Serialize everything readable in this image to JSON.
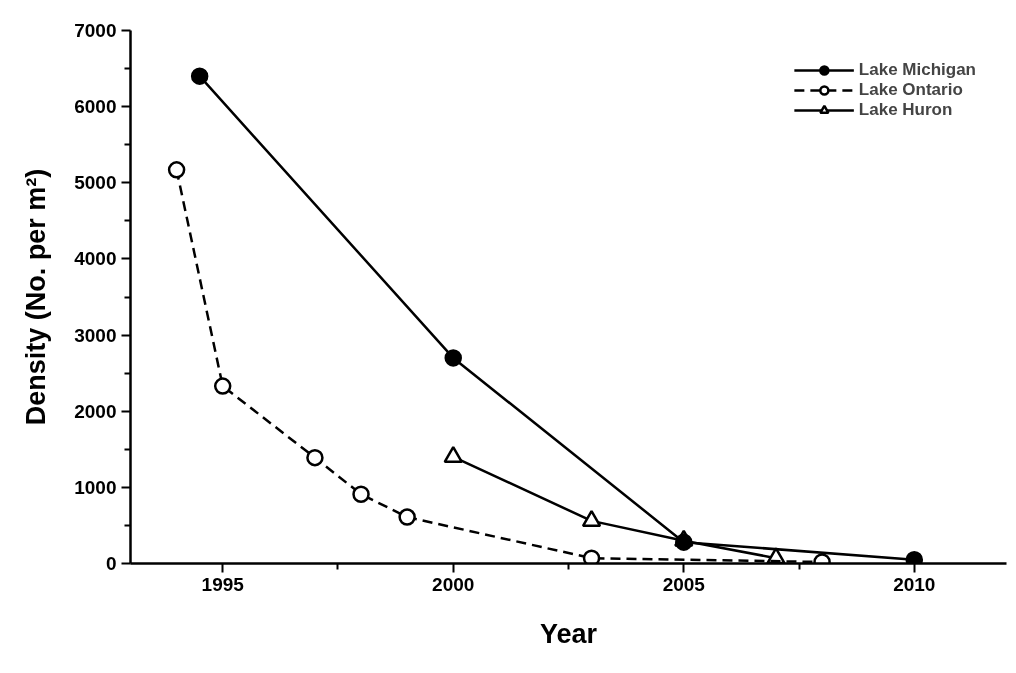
{
  "chart_data": {
    "type": "line",
    "xlabel": "Year",
    "ylabel": "Density (No. per m²)",
    "xlim": [
      1993,
      2012
    ],
    "ylim": [
      0,
      7000
    ],
    "xticks": [
      1995,
      {
        "value": 1997.5,
        "label": null
      },
      2000,
      {
        "value": 2002.5,
        "label": null
      },
      2005,
      {
        "value": 2007.5,
        "label": null
      },
      2010
    ],
    "yticks": [
      0,
      {
        "value": 500,
        "label": null
      },
      1000,
      {
        "value": 1500,
        "label": null
      },
      2000,
      {
        "value": 2500,
        "label": null
      },
      3000,
      {
        "value": 3500,
        "label": null
      },
      4000,
      {
        "value": 4500,
        "label": null
      },
      5000,
      {
        "value": 5500,
        "label": null
      },
      6000,
      {
        "value": 6500,
        "label": null
      },
      7000
    ],
    "grid": false,
    "legend": "top right",
    "series": [
      {
        "name": "Lake Michigan",
        "color": "#000000",
        "marker": "circle",
        "line_style": "solid",
        "x": [
          1994.5,
          2000,
          2005,
          2010
        ],
        "values": [
          6400,
          2700,
          280,
          50
        ]
      },
      {
        "name": "Lake Ontario",
        "color": "#000000",
        "marker": "circle",
        "line_style": "dashed",
        "x": [
          1994,
          1995,
          1997,
          1998,
          1999,
          2003,
          2008
        ],
        "values": [
          5170,
          2330,
          1390,
          910,
          610,
          70,
          20
        ]
      },
      {
        "name": "Lake Huron",
        "color": "#000000",
        "marker": "triangle",
        "line_style": "solid",
        "x": [
          2000,
          2003,
          2005,
          2007
        ],
        "values": [
          1400,
          560,
          300,
          70
        ]
      }
    ]
  }
}
